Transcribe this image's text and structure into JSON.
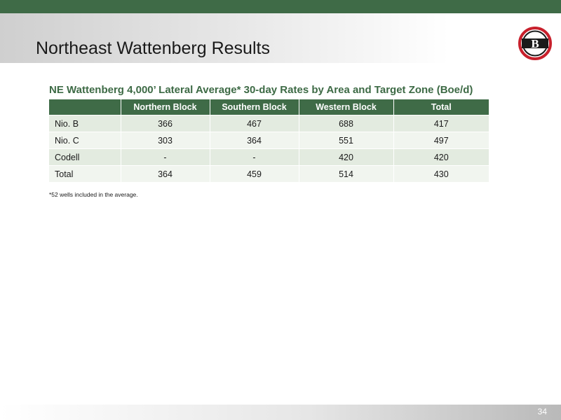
{
  "header": {
    "title": "Northeast Wattenberg Results",
    "logo_letter": "B",
    "logo_icon": "bonanza-creek-logo-icon"
  },
  "table": {
    "title": "NE Wattenberg 4,000’ Lateral Average* 30-day Rates by Area and Target Zone (Boe/d)",
    "columns": [
      "",
      "Northern Block",
      "Southern Block",
      "Western Block",
      "Total"
    ],
    "rows": [
      [
        "Nio. B",
        "366",
        "467",
        "688",
        "417"
      ],
      [
        "Nio. C",
        "303",
        "364",
        "551",
        "497"
      ],
      [
        "Codell",
        "-",
        "-",
        "420",
        "420"
      ],
      [
        "Total",
        "364",
        "459",
        "514",
        "430"
      ]
    ],
    "footnote": "*52 wells included in the average."
  },
  "footer": {
    "page_number": "34"
  },
  "colors": {
    "brand_green": "#3f6b47",
    "row_odd": "#e3ebe0",
    "row_even": "#f1f5ef",
    "logo_red": "#c8202c"
  }
}
